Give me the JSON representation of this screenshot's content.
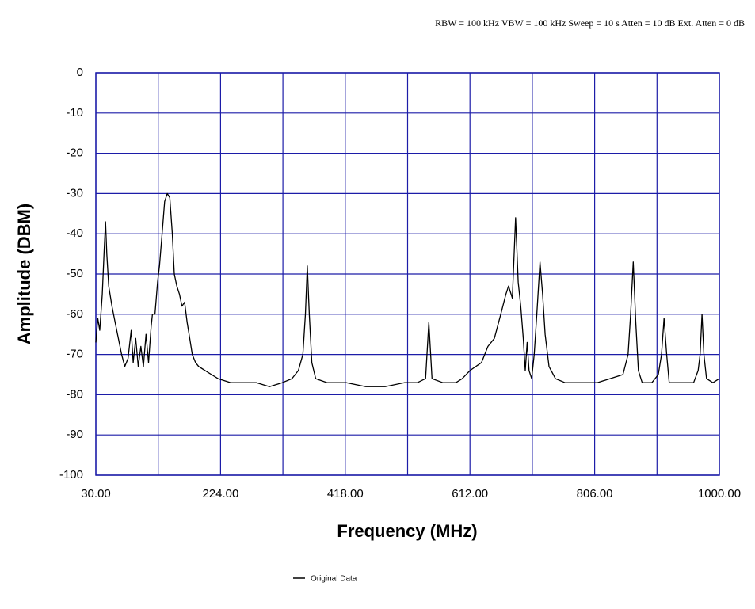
{
  "chart_data": {
    "type": "line",
    "subtitle": "RBW = 100 kHz VBW = 100 kHz Sweep = 10 s Atten = 10 dB Ext. Atten = 0 dB",
    "x_label": "Frequency (MHz)",
    "y_label": "Amplitude (DBM)",
    "x": [
      30,
      33,
      36,
      40,
      43,
      45,
      47,
      50,
      55,
      60,
      65,
      70,
      75,
      80,
      85,
      88,
      92,
      96,
      100,
      104,
      108,
      112,
      116,
      118,
      122,
      126,
      129,
      133,
      137,
      141,
      145,
      149,
      152,
      156,
      160,
      164,
      168,
      172,
      176,
      180,
      185,
      190,
      200,
      210,
      220,
      240,
      260,
      280,
      300,
      320,
      335,
      345,
      352,
      356,
      359,
      362,
      366,
      372,
      390,
      420,
      450,
      480,
      510,
      530,
      543,
      548,
      553,
      570,
      590,
      600,
      612,
      630,
      640,
      650,
      660,
      668,
      672,
      678,
      683,
      687,
      691,
      695,
      698,
      701,
      704,
      708,
      712,
      716,
      721,
      725,
      729,
      735,
      745,
      760,
      780,
      810,
      830,
      850,
      858,
      862,
      866,
      870,
      874,
      880,
      895,
      905,
      910,
      914,
      918,
      922,
      940,
      960,
      967,
      970,
      973,
      976,
      980,
      990,
      1000
    ],
    "series": [
      {
        "name": "Original Data",
        "color": "#000000",
        "values": [
          -67,
          -61,
          -64,
          -55,
          -44,
          -37,
          -45,
          -53,
          -58,
          -62,
          -66,
          -70,
          -73,
          -71,
          -64,
          -72,
          -66,
          -73,
          -68,
          -73,
          -65,
          -72,
          -63,
          -60,
          -60,
          -52,
          -48,
          -40,
          -32,
          -30,
          -31,
          -40,
          -50,
          -53,
          -55,
          -58,
          -57,
          -62,
          -66,
          -70,
          -72,
          -73,
          -74,
          -75,
          -76,
          -77,
          -77,
          -77,
          -78,
          -77,
          -76,
          -74,
          -70,
          -60,
          -48,
          -60,
          -72,
          -76,
          -77,
          -77,
          -78,
          -78,
          -77,
          -77,
          -76,
          -62,
          -76,
          -77,
          -77,
          -76,
          -74,
          -72,
          -68,
          -66,
          -60,
          -55,
          -53,
          -56,
          -36,
          -52,
          -58,
          -66,
          -74,
          -67,
          -74,
          -76,
          -70,
          -60,
          -47,
          -55,
          -65,
          -73,
          -76,
          -77,
          -77,
          -77,
          -76,
          -75,
          -70,
          -60,
          -47,
          -62,
          -74,
          -77,
          -77,
          -75,
          -70,
          -61,
          -70,
          -77,
          -77,
          -77,
          -74,
          -70,
          -60,
          -70,
          -76,
          -77,
          -76
        ]
      }
    ],
    "xlim": [
      30,
      1000
    ],
    "ylim": [
      -100,
      0
    ],
    "xticks": [
      {
        "value": 30,
        "label": "30.00"
      },
      {
        "value": 224,
        "label": "224.00"
      },
      {
        "value": 418,
        "label": "418.00"
      },
      {
        "value": 612,
        "label": "612.00"
      },
      {
        "value": 806,
        "label": "806.00"
      },
      {
        "value": 1000,
        "label": "1000.00"
      }
    ],
    "xgrid": [
      127,
      321,
      515,
      709,
      903
    ],
    "yticks": [
      0,
      -10,
      -20,
      -30,
      -40,
      -50,
      -60,
      -70,
      -80,
      -90,
      -100
    ],
    "grid": true,
    "grid_color": "#1c1ca8"
  }
}
